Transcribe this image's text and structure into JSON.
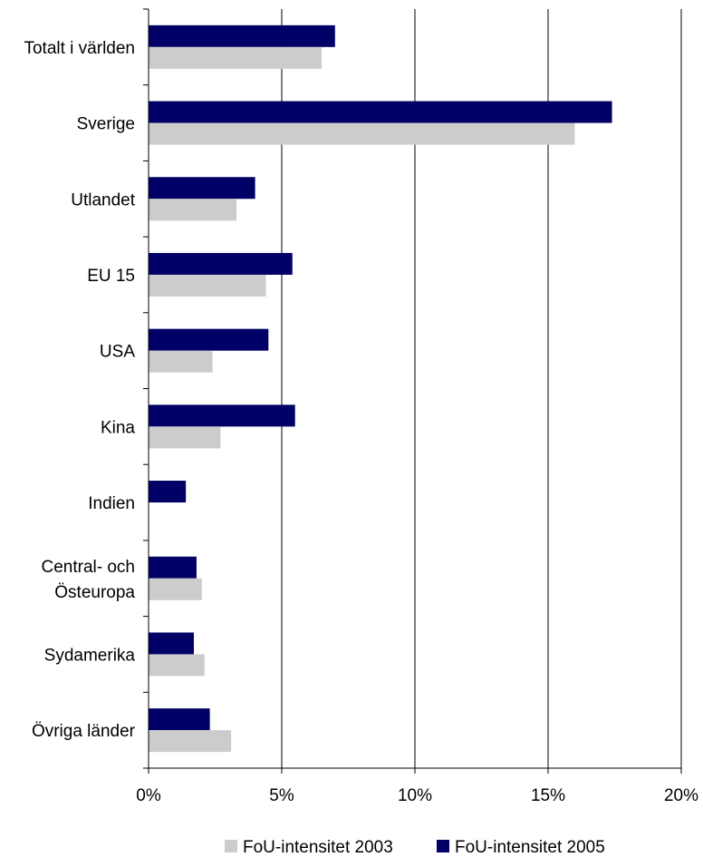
{
  "chart_data": {
    "type": "bar",
    "orientation": "horizontal",
    "categories": [
      [
        "Totalt i världen"
      ],
      [
        "Sverige"
      ],
      [
        "Utlandet"
      ],
      [
        "EU 15"
      ],
      [
        "USA"
      ],
      [
        "Kina"
      ],
      [
        "Indien"
      ],
      [
        "Central- och",
        "Östeuropa"
      ],
      [
        "Sydamerika"
      ],
      [
        "Övriga länder"
      ]
    ],
    "series": [
      {
        "name": "FoU-intensitet 2003",
        "color": "#cccccc",
        "values": [
          6.5,
          16.0,
          3.3,
          4.4,
          2.4,
          2.7,
          null,
          2.0,
          2.1,
          3.1
        ]
      },
      {
        "name": "FoU-intensitet 2005",
        "color": "#000066",
        "values": [
          7.0,
          17.4,
          4.0,
          5.4,
          4.5,
          5.5,
          1.4,
          1.8,
          1.7,
          2.3
        ]
      }
    ],
    "xlim": [
      0,
      20
    ],
    "xticks": [
      0,
      5,
      10,
      15,
      20
    ],
    "xtick_labels": [
      "0%",
      "5%",
      "10%",
      "15%",
      "20%"
    ],
    "grid": "vertical",
    "legend": "bottom"
  }
}
